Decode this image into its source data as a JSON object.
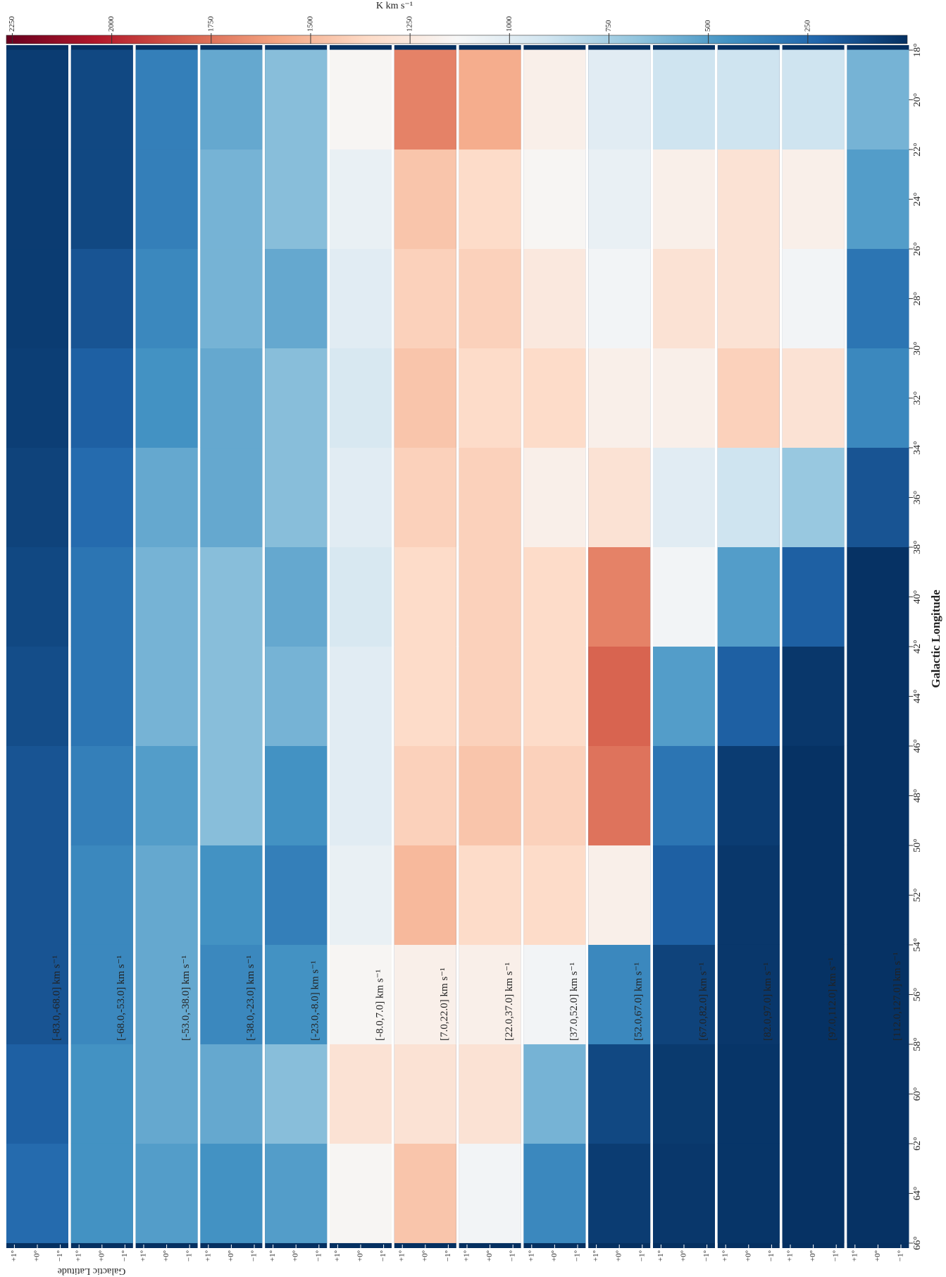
{
  "chart_data": {
    "type": "heatmap",
    "x_label": "Galactic Longitude",
    "y_label": "Galactic Latitude",
    "colorbar_label": "K km s⁻¹",
    "xlim": [
      66.2,
      17.8
    ],
    "ylim": [
      1.35,
      -1.35
    ],
    "clim": [
      0,
      2265
    ],
    "colormap": [
      "#053061",
      "#2166ac",
      "#4393c3",
      "#92c5de",
      "#d1e5f0",
      "#f7f7f7",
      "#fddbc7",
      "#f4a582",
      "#d6604d",
      "#b2182b",
      "#67001f"
    ],
    "xticks": [
      {
        "value": 66,
        "label": "66°"
      },
      {
        "value": 64,
        "label": "64°"
      },
      {
        "value": 62,
        "label": "62°"
      },
      {
        "value": 60,
        "label": "60°"
      },
      {
        "value": 58,
        "label": "58°"
      },
      {
        "value": 56,
        "label": "56°"
      },
      {
        "value": 54,
        "label": "54°"
      },
      {
        "value": 52,
        "label": "52°"
      },
      {
        "value": 50,
        "label": "50°"
      },
      {
        "value": 48,
        "label": "48°"
      },
      {
        "value": 46,
        "label": "46°"
      },
      {
        "value": 44,
        "label": "44°"
      },
      {
        "value": 42,
        "label": "42°"
      },
      {
        "value": 40,
        "label": "40°"
      },
      {
        "value": 38,
        "label": "38°"
      },
      {
        "value": 36,
        "label": "36°"
      },
      {
        "value": 34,
        "label": "34°"
      },
      {
        "value": 32,
        "label": "32°"
      },
      {
        "value": 30,
        "label": "30°"
      },
      {
        "value": 28,
        "label": "28°"
      },
      {
        "value": 26,
        "label": "26°"
      },
      {
        "value": 24,
        "label": "24°"
      },
      {
        "value": 22,
        "label": "22°"
      },
      {
        "value": 20,
        "label": "20°"
      },
      {
        "value": 18,
        "label": "18°"
      }
    ],
    "yticks": [
      {
        "value": 1,
        "label": "+1°"
      },
      {
        "value": 0,
        "label": "+0°"
      },
      {
        "value": -1,
        "label": "−1°"
      }
    ],
    "cticks": [
      250,
      500,
      750,
      1000,
      1250,
      1500,
      1750,
      2000,
      2250
    ],
    "bins": [
      66,
      62,
      58,
      54,
      50,
      46,
      42,
      38,
      34,
      30,
      26,
      22,
      18
    ],
    "panels": [
      {
        "label": "[-83.0,-68.0] km s⁻¹",
        "label_color": "#ffffff",
        "values": [
          250,
          200,
          150,
          150,
          150,
          120,
          100,
          80,
          60,
          50,
          50,
          50
        ]
      },
      {
        "label": "[-68.0,-53.0] km s⁻¹",
        "label_color": "#ffffff",
        "values": [
          450,
          450,
          400,
          400,
          350,
          300,
          300,
          250,
          200,
          150,
          100,
          100
        ]
      },
      {
        "label": "[-53.0,-38.0] km s⁻¹",
        "label_color": "#ffffff",
        "values": [
          500,
          550,
          550,
          550,
          500,
          600,
          600,
          550,
          450,
          400,
          350,
          350
        ]
      },
      {
        "label": "[-38.0,-23.0] km s⁻¹",
        "label_color": "#ffffff",
        "values": [
          450,
          550,
          400,
          450,
          650,
          650,
          650,
          550,
          550,
          600,
          600,
          550
        ]
      },
      {
        "label": "[-23.0,-8.0] km s⁻¹",
        "label_color": "#ffffff",
        "values": [
          500,
          650,
          450,
          350,
          450,
          600,
          550,
          650,
          650,
          550,
          650,
          650
        ]
      },
      {
        "label": "[-8.0,7.0] km s⁻¹",
        "label_color": "#222222",
        "values": [
          1150,
          1300,
          1150,
          1050,
          1000,
          1000,
          950,
          1000,
          950,
          1000,
          1050,
          1150
        ]
      },
      {
        "label": "[7.0,22.0] km s⁻¹",
        "label_color": "#222222",
        "values": [
          1450,
          1300,
          1200,
          1500,
          1400,
          1350,
          1350,
          1400,
          1450,
          1400,
          1450,
          1700
        ]
      },
      {
        "label": "[22.0,37.0] km s⁻¹",
        "label_color": "#222222",
        "values": [
          1100,
          1300,
          1200,
          1350,
          1450,
          1400,
          1400,
          1400,
          1350,
          1400,
          1350,
          1550
        ]
      },
      {
        "label": "[37.0,52.0] km s⁻¹",
        "label_color": "#ffffff",
        "values": [
          400,
          600,
          1100,
          1350,
          1400,
          1350,
          1350,
          1200,
          1350,
          1250,
          1150,
          1200
        ]
      },
      {
        "label": "[52.0,67.0] km s⁻¹",
        "label_color": "#ffffff",
        "values": [
          50,
          100,
          400,
          1200,
          1750,
          1800,
          1700,
          1300,
          1200,
          1100,
          1050,
          1000
        ]
      },
      {
        "label": "[67.0,82.0] km s⁻¹",
        "label_color": "#ffffff",
        "values": [
          30,
          40,
          80,
          200,
          300,
          500,
          1100,
          1000,
          1200,
          1300,
          1200,
          900
        ]
      },
      {
        "label": "[82.0,97.0] km s⁻¹",
        "label_color": "#ffffff",
        "values": [
          20,
          20,
          30,
          30,
          50,
          200,
          500,
          900,
          1400,
          1300,
          1300,
          900
        ]
      },
      {
        "label": "[97.0,112.0] km s⁻¹",
        "label_color": "#ffffff",
        "values": [
          10,
          10,
          10,
          10,
          10,
          30,
          200,
          700,
          1300,
          1100,
          1200,
          900
        ]
      },
      {
        "label": "[112.0,127.0] km s⁻¹",
        "label_color": "#ffffff",
        "values": [
          10,
          10,
          10,
          10,
          10,
          10,
          10,
          150,
          400,
          300,
          500,
          600
        ]
      }
    ]
  }
}
